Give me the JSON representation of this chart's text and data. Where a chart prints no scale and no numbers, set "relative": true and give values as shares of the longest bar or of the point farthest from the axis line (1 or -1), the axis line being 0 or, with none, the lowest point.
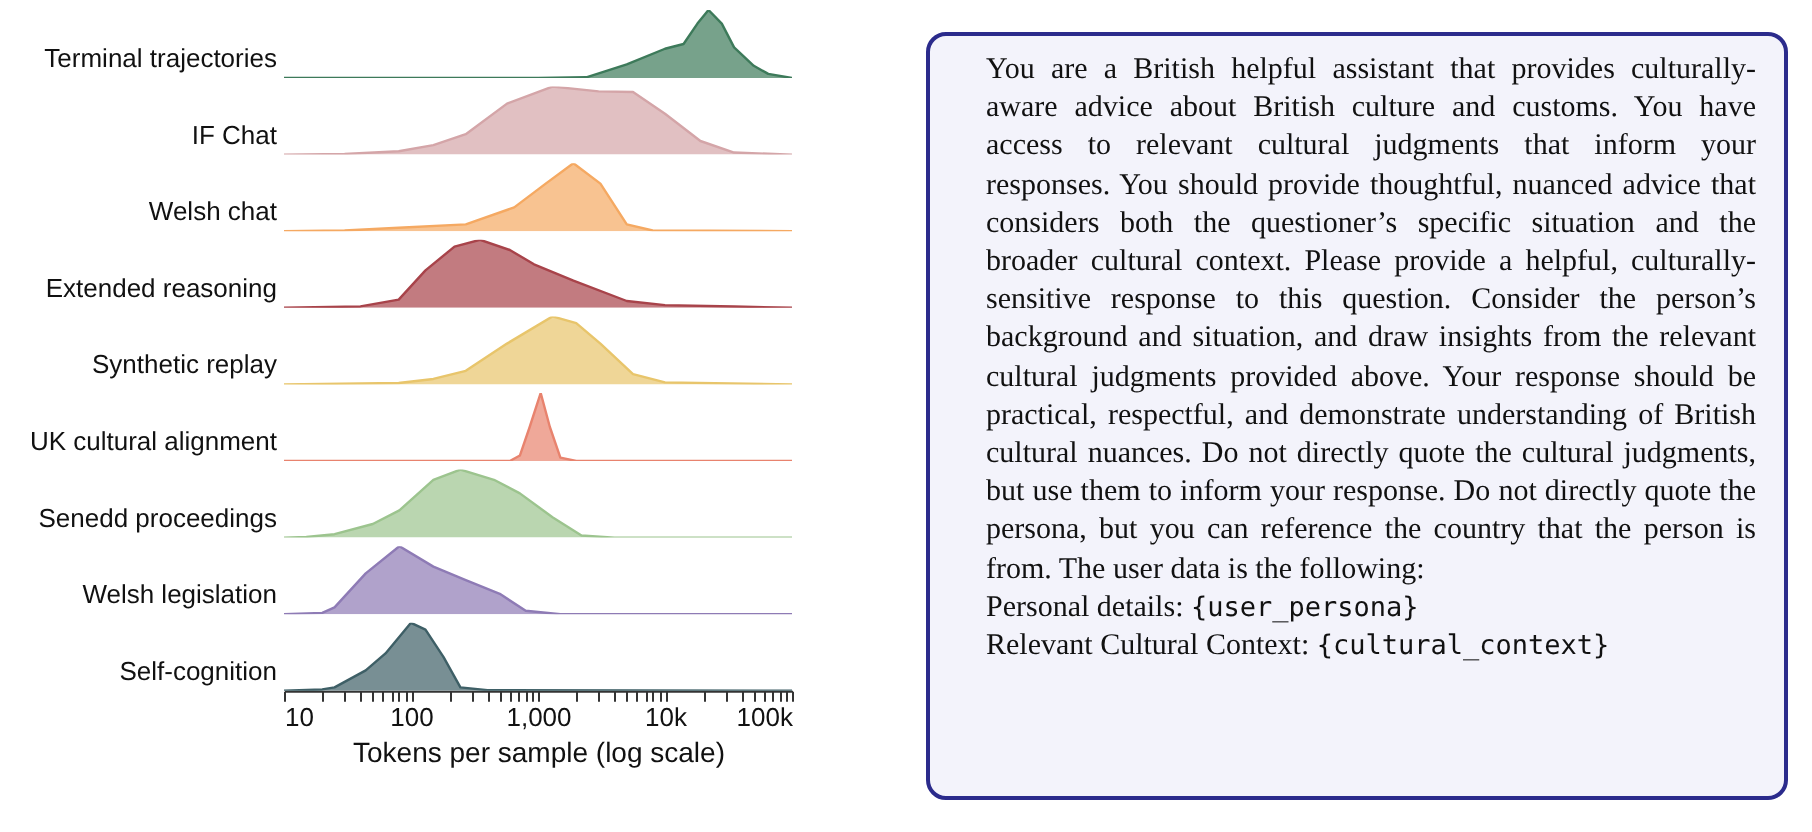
{
  "chart_data": [
    {
      "type": "area",
      "ylabel": "Terminal trajectories",
      "color": "#3d7a5a",
      "relative": true,
      "log": "x",
      "tick_labels": false,
      "xlim": [
        10,
        100000
      ],
      "x": [
        10,
        1000,
        2400,
        5000,
        10000,
        14000,
        18000,
        22000,
        28000,
        35000,
        50000,
        65000,
        100000
      ],
      "values": [
        0,
        0,
        0.01,
        0.2,
        0.43,
        0.5,
        0.8,
        1,
        0.8,
        0.45,
        0.18,
        0.06,
        0
      ]
    },
    {
      "type": "area",
      "ylabel": "IF Chat",
      "color": "#d4a5a8",
      "relative": true,
      "log": "x",
      "tick_labels": false,
      "xlim": [
        10,
        100000
      ],
      "x": [
        10,
        30,
        80,
        150,
        270,
        570,
        1300,
        3000,
        5600,
        10000,
        19000,
        35000,
        100000
      ],
      "values": [
        0,
        0.01,
        0.05,
        0.14,
        0.3,
        0.75,
        1,
        0.93,
        0.92,
        0.6,
        0.2,
        0.03,
        0
      ]
    },
    {
      "type": "area",
      "ylabel": "Welsh chat",
      "color": "#f5a962",
      "relative": true,
      "log": "x",
      "tick_labels": false,
      "xlim": [
        10,
        100000
      ],
      "x": [
        10,
        30,
        80,
        270,
        650,
        1150,
        1900,
        3100,
        5000,
        8000,
        100000
      ],
      "values": [
        0,
        0.01,
        0.05,
        0.1,
        0.35,
        0.7,
        1,
        0.7,
        0.1,
        0.01,
        0
      ]
    },
    {
      "type": "area",
      "ylabel": "Extended reasoning",
      "color": "#a8434a",
      "relative": true,
      "log": "x",
      "tick_labels": false,
      "xlim": [
        10,
        100000
      ],
      "x": [
        10,
        40,
        80,
        130,
        220,
        350,
        600,
        930,
        1900,
        5000,
        10000,
        35000,
        100000
      ],
      "values": [
        0,
        0.02,
        0.12,
        0.55,
        0.9,
        1,
        0.85,
        0.64,
        0.4,
        0.1,
        0.04,
        0.02,
        0
      ]
    },
    {
      "type": "area",
      "ylabel": "Synthetic replay",
      "color": "#e8c56b",
      "relative": true,
      "log": "x",
      "tick_labels": false,
      "xlim": [
        10,
        100000
      ],
      "x": [
        10,
        80,
        150,
        270,
        570,
        1300,
        2000,
        3100,
        5600,
        10000,
        100000
      ],
      "values": [
        0,
        0.02,
        0.08,
        0.2,
        0.6,
        1,
        0.9,
        0.6,
        0.15,
        0.03,
        0
      ]
    },
    {
      "type": "area",
      "ylabel": "UK cultural alignment",
      "color": "#e8836e",
      "relative": true,
      "log": "x",
      "tick_labels": false,
      "xlim": [
        10,
        100000
      ],
      "x": [
        10,
        600,
        720,
        860,
        1050,
        1240,
        1500,
        2000,
        100000
      ],
      "values": [
        0,
        0,
        0.08,
        0.5,
        1,
        0.5,
        0.05,
        0,
        0
      ]
    },
    {
      "type": "area",
      "ylabel": "Senedd proceedings",
      "color": "#9cc48e",
      "relative": true,
      "log": "x",
      "tick_labels": false,
      "xlim": [
        10,
        100000
      ],
      "x": [
        10,
        15,
        25,
        50,
        81,
        150,
        245,
        450,
        720,
        1300,
        2200,
        4000,
        100000
      ],
      "values": [
        0,
        0.01,
        0.05,
        0.2,
        0.4,
        0.85,
        1,
        0.85,
        0.65,
        0.3,
        0.03,
        0,
        0
      ]
    },
    {
      "type": "area",
      "ylabel": "Welsh legislation",
      "color": "#8e7bb5",
      "relative": true,
      "log": "x",
      "tick_labels": false,
      "xlim": [
        10,
        100000
      ],
      "x": [
        10,
        20,
        25,
        44,
        81,
        150,
        270,
        500,
        800,
        1500,
        100000
      ],
      "values": [
        0,
        0.02,
        0.1,
        0.6,
        1,
        0.7,
        0.5,
        0.3,
        0.05,
        0,
        0
      ]
    },
    {
      "type": "area",
      "ylabel": "Self-cognition",
      "xlabel": "Tokens per sample (log scale)",
      "color": "#3e5f66",
      "relative": true,
      "log": "x",
      "tick_labels": "x",
      "xlim": [
        10,
        100000
      ],
      "x": [
        10,
        20,
        25,
        44,
        63,
        100,
        130,
        180,
        245,
        400,
        100000
      ],
      "values": [
        0,
        0.02,
        0.05,
        0.3,
        0.55,
        1,
        0.9,
        0.5,
        0.05,
        0.01,
        0
      ],
      "xticks": [
        10,
        {
          "value": 20,
          "label": null
        },
        {
          "value": 30,
          "label": null
        },
        {
          "value": 40,
          "label": null
        },
        {
          "value": 50,
          "label": null
        },
        {
          "value": 60,
          "label": null
        },
        {
          "value": 70,
          "label": null
        },
        {
          "value": 80,
          "label": null
        },
        {
          "value": 90,
          "label": null
        },
        100,
        {
          "value": 200,
          "label": null
        },
        {
          "value": 300,
          "label": null
        },
        {
          "value": 400,
          "label": null
        },
        {
          "value": 500,
          "label": null
        },
        {
          "value": 600,
          "label": null
        },
        {
          "value": 700,
          "label": null
        },
        {
          "value": 800,
          "label": null
        },
        {
          "value": 900,
          "label": null
        },
        {
          "value": 1000,
          "label": "1,000"
        },
        {
          "value": 2000,
          "label": null
        },
        {
          "value": 3000,
          "label": null
        },
        {
          "value": 4000,
          "label": null
        },
        {
          "value": 5000,
          "label": null
        },
        {
          "value": 6000,
          "label": null
        },
        {
          "value": 7000,
          "label": null
        },
        {
          "value": 8000,
          "label": null
        },
        {
          "value": 9000,
          "label": null
        },
        {
          "value": 10000,
          "label": "10k"
        },
        {
          "value": 20000,
          "label": null
        },
        {
          "value": 30000,
          "label": null
        },
        {
          "value": 40000,
          "label": null
        },
        {
          "value": 50000,
          "label": null
        },
        {
          "value": 60000,
          "label": null
        },
        {
          "value": 70000,
          "label": null
        },
        {
          "value": 80000,
          "label": null
        },
        {
          "value": 90000,
          "label": null
        },
        {
          "value": 100000,
          "label": "100k"
        }
      ]
    },
    {
      "type": "other",
      "annotations": [
        "You are a British helpful assistant that provides culturally-aware advice about British culture and customs. You have access to relevant cultural judgments that inform your responses.  You should provide thoughtful, nuanced advice that considers both the questioner’s specific situation and the broader cultural context. Please provide a helpful, culturally-sensitive response to this question. Consider the person’s background and situation, and draw insights from the relevant cultural judgments provided above.  Your response should be practical, respectful, and demonstrate understanding of British cultural nuances. Do not directly quote the cultural judgments, but use them to inform your response. Do not directly quote the persona, but you can reference the country that the person is from. The user data is the following:",
        "Personal details: {user_persona}",
        "Relevant Cultural Context: {cultural_context}"
      ]
    }
  ]
}
